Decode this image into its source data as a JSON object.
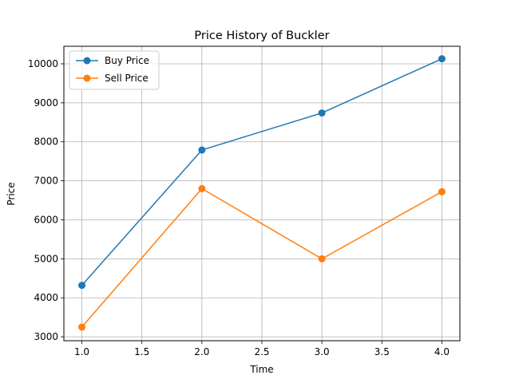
{
  "chart_data": {
    "type": "line",
    "title": "Price History of Buckler",
    "xlabel": "Time",
    "ylabel": "Price",
    "xlim": [
      0.85,
      4.15
    ],
    "ylim": [
      2900,
      10450
    ],
    "xticks": [
      1.0,
      1.5,
      2.0,
      2.5,
      3.0,
      3.5,
      4.0
    ],
    "xtick_labels": [
      "1.0",
      "1.5",
      "2.0",
      "2.5",
      "3.0",
      "3.5",
      "4.0"
    ],
    "yticks": [
      3000,
      4000,
      5000,
      6000,
      7000,
      8000,
      9000,
      10000
    ],
    "ytick_labels": [
      "3000",
      "4000",
      "5000",
      "6000",
      "7000",
      "8000",
      "9000",
      "10000"
    ],
    "grid": true,
    "legend_position": "top-left",
    "x": [
      1,
      2,
      3,
      4
    ],
    "series": [
      {
        "name": "Buy Price",
        "color": "#1f77b4",
        "marker": "circle",
        "values": [
          4320,
          7790,
          8740,
          10130
        ]
      },
      {
        "name": "Sell Price",
        "color": "#ff7f0e",
        "marker": "circle",
        "values": [
          3250,
          6800,
          5000,
          6720
        ]
      }
    ]
  }
}
